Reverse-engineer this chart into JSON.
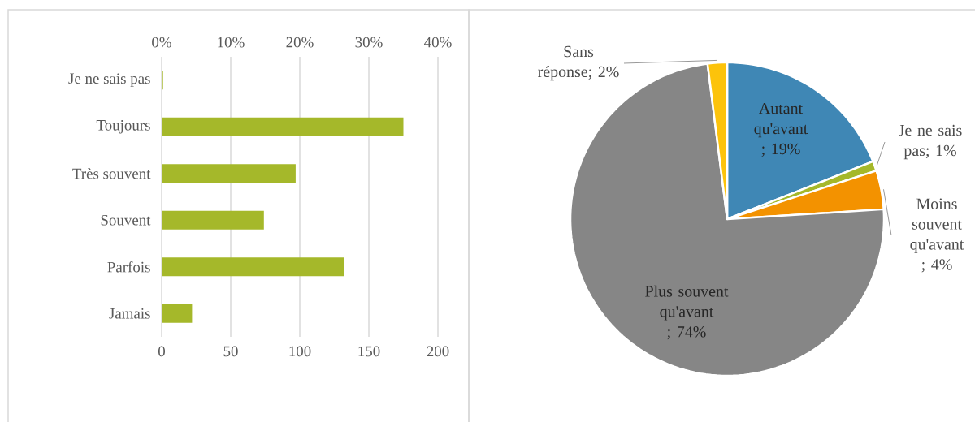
{
  "chart_data": [
    {
      "type": "bar",
      "orientation": "horizontal",
      "categories": [
        "Je ne sais pas",
        "Toujours",
        "Très souvent",
        "Souvent",
        "Parfois",
        "Jamais"
      ],
      "values": [
        1,
        175,
        97,
        74,
        132,
        22
      ],
      "color": "#a5b82a",
      "xlim": [
        0,
        200
      ],
      "xticks": [
        0,
        50,
        100,
        150,
        200
      ],
      "x2lim": [
        0,
        40
      ],
      "x2ticks": [
        {
          "value": 0,
          "label": "0%"
        },
        {
          "value": 10,
          "label": "10%"
        },
        {
          "value": 20,
          "label": "20%"
        },
        {
          "value": 30,
          "label": "30%"
        },
        {
          "value": 40,
          "label": "40%"
        }
      ],
      "grid": "x"
    },
    {
      "type": "pie",
      "categories": [
        "Autant qu'avant ; 19%",
        "Je ne sais pas; 1%",
        "Moins souvent qu'avant ; 4%",
        "Plus souvent qu'avant ; 74%",
        "Sans réponse; 2%"
      ],
      "values": [
        19,
        1,
        4,
        74,
        2
      ],
      "colors": [
        "#3f87b5",
        "#a5b82a",
        "#f39200",
        "#868686",
        "#fcc30b"
      ]
    }
  ]
}
